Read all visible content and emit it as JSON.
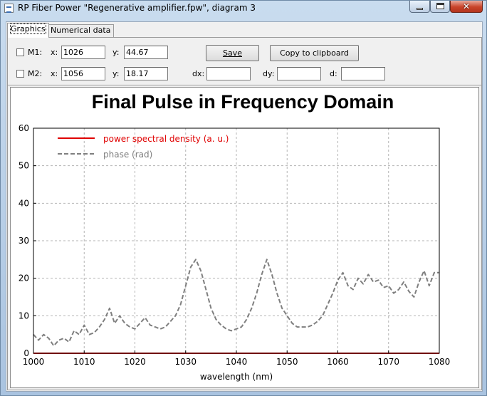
{
  "window": {
    "title": "RP Fiber Power \"Regenerative amplifier.fpw\", diagram 3",
    "close_glyph": "✕"
  },
  "tabs": [
    {
      "label": "Graphics",
      "active": true
    },
    {
      "label": "Numerical data",
      "active": false
    }
  ],
  "markers": {
    "m1": {
      "label": "M1:",
      "x_label": "x:",
      "x_value": "1026",
      "y_label": "y:",
      "y_value": "44.67"
    },
    "m2": {
      "label": "M2:",
      "x_label": "x:",
      "x_value": "1056",
      "y_label": "y:",
      "y_value": "18.17"
    }
  },
  "diffs": {
    "dx_label": "dx:",
    "dx_value": "",
    "dy_label": "dy:",
    "dy_value": "",
    "d_label": "d:",
    "d_value": ""
  },
  "buttons": {
    "save": "Save",
    "copy": "Copy to clipboard"
  },
  "chart_data": {
    "type": "line",
    "title": "Final Pulse in Frequency Domain",
    "xlabel": "wavelength (nm)",
    "ylabel": "",
    "xlim": [
      1000,
      1080
    ],
    "ylim": [
      0,
      60
    ],
    "xticks": [
      1000,
      1010,
      1020,
      1030,
      1040,
      1050,
      1060,
      1070,
      1080
    ],
    "yticks": [
      0,
      10,
      20,
      30,
      40,
      50,
      60
    ],
    "grid": true,
    "legend_position": "top-left",
    "colors": {
      "psd": "#e00000",
      "phase": "#7f7f7f"
    },
    "series": [
      {
        "name": "power spectral density (a. u.)",
        "style": "solid",
        "x": [
          1000,
          1080
        ],
        "y": [
          0,
          0
        ]
      },
      {
        "name": "phase (rad)",
        "style": "dashed",
        "x": [
          1000,
          1001,
          1002,
          1003,
          1004,
          1005,
          1006,
          1007,
          1008,
          1009,
          1010,
          1011,
          1012,
          1013,
          1014,
          1015,
          1016,
          1017,
          1018,
          1019,
          1020,
          1021,
          1022,
          1023,
          1024,
          1025,
          1026,
          1027,
          1028,
          1029,
          1030,
          1031,
          1032,
          1033,
          1034,
          1035,
          1036,
          1037,
          1038,
          1039,
          1040,
          1041,
          1042,
          1043,
          1044,
          1045,
          1046,
          1047,
          1048,
          1049,
          1050,
          1051,
          1052,
          1053,
          1054,
          1055,
          1056,
          1057,
          1058,
          1059,
          1060,
          1061,
          1062,
          1063,
          1064,
          1065,
          1066,
          1067,
          1068,
          1069,
          1070,
          1071,
          1072,
          1073,
          1074,
          1075,
          1076,
          1077,
          1078,
          1079,
          1080
        ],
        "y": [
          5,
          3.5,
          5,
          4,
          2,
          3.5,
          4,
          3,
          6,
          5,
          7.5,
          5,
          5.5,
          7,
          9,
          12,
          8,
          10,
          8,
          7,
          6.5,
          8,
          9.5,
          7.5,
          7,
          6.5,
          7,
          8.5,
          10,
          13,
          18,
          23,
          25,
          22,
          17,
          12,
          9,
          7.5,
          6.5,
          6,
          6.5,
          7,
          9,
          12,
          16,
          21,
          25,
          21,
          16,
          12,
          10,
          8,
          7,
          7,
          7,
          7.5,
          8.5,
          10,
          13,
          16,
          19.5,
          21.5,
          18,
          17,
          20,
          18.5,
          21,
          19,
          19.5,
          17.5,
          18,
          16,
          17,
          19,
          16.5,
          15,
          19,
          22,
          18,
          21.5,
          21.5
        ]
      }
    ]
  }
}
